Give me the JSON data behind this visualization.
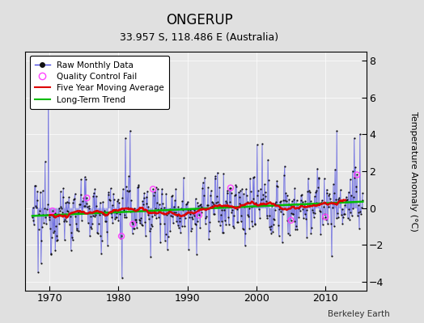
{
  "title": "ONGERUP",
  "subtitle": "33.957 S, 118.486 E (Australia)",
  "ylabel": "Temperature Anomaly (°C)",
  "credit": "Berkeley Earth",
  "start_year": 1967.5,
  "end_year": 2015.5,
  "xlim": [
    1966.5,
    2016.0
  ],
  "ylim": [
    -4.5,
    8.5
  ],
  "yticks": [
    -4,
    -2,
    0,
    2,
    4,
    6,
    8
  ],
  "xticks": [
    1970,
    1980,
    1990,
    2000,
    2010
  ],
  "fig_bg_color": "#e0e0e0",
  "plot_bg_color": "#e8e8e8",
  "line_color": "#4444dd",
  "dot_color": "#111111",
  "moving_avg_color": "#dd0000",
  "trend_color": "#00bb00",
  "qc_color": "#ff44ff",
  "seed": 12345,
  "n_months": 576,
  "title_fontsize": 12,
  "subtitle_fontsize": 9,
  "ylabel_fontsize": 8
}
